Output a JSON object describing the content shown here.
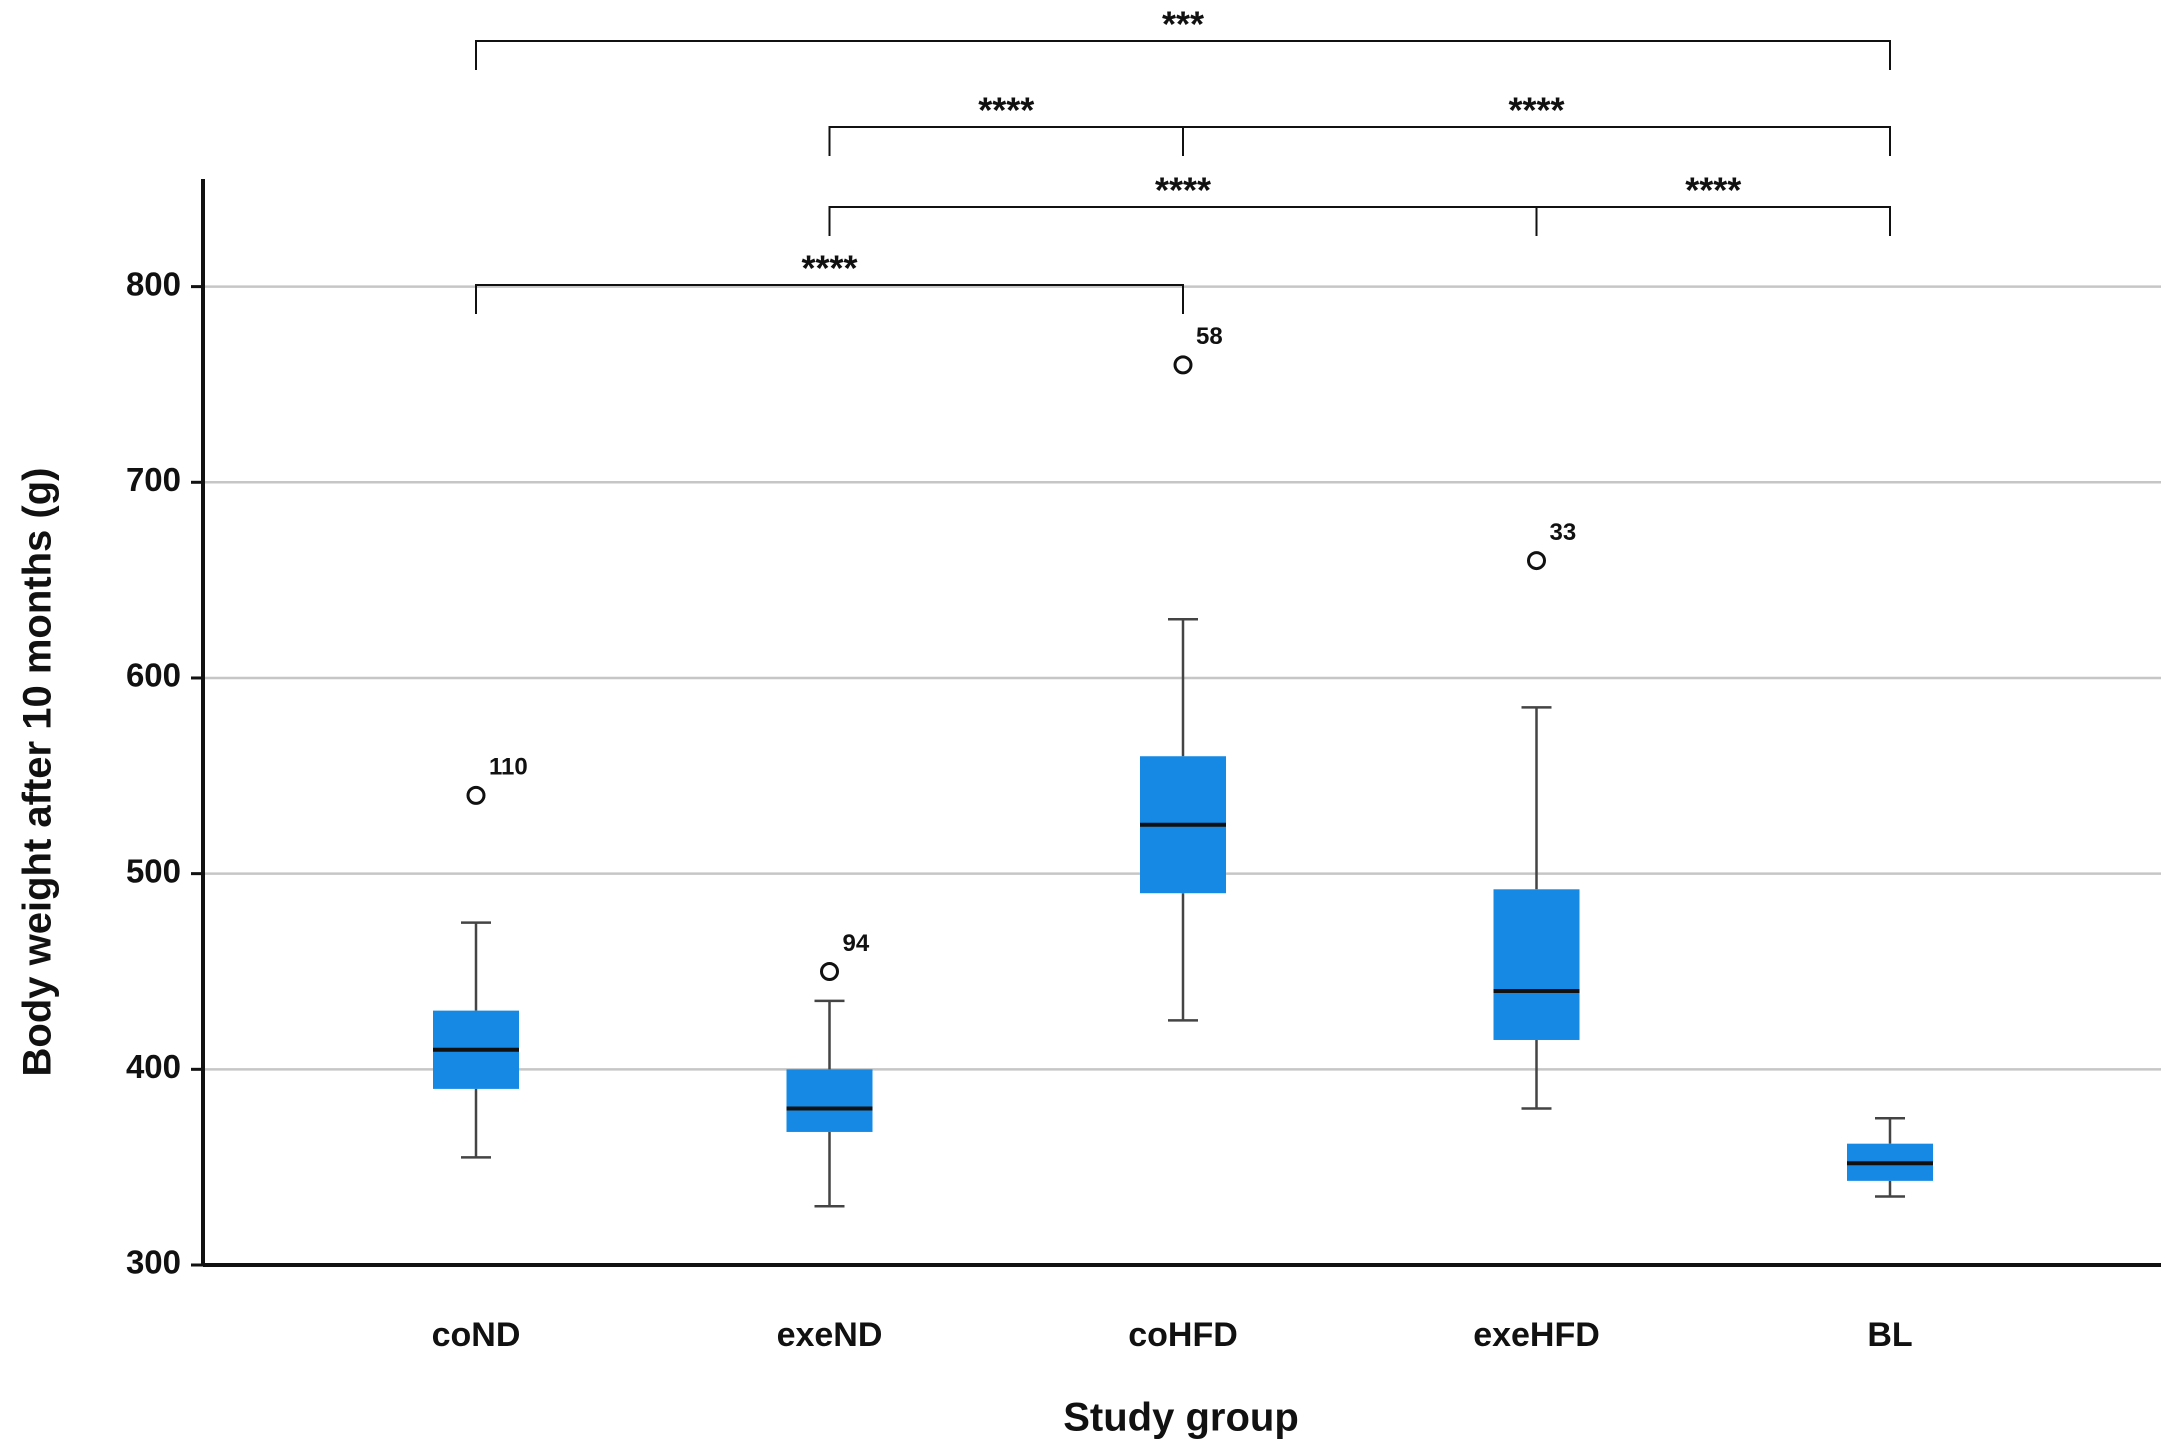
{
  "chart_data": {
    "type": "box",
    "x_label": "Study group",
    "y_label": "Body weight after 10 months (g)",
    "categories": [
      "coND",
      "exeND",
      "coHFD",
      "exeHFD",
      "BL"
    ],
    "color": "#1589e3",
    "ylim": [
      300,
      855
    ],
    "yticks": [
      300,
      400,
      500,
      600,
      700,
      800
    ],
    "grid": true,
    "boxes": [
      {
        "min": 355,
        "q1": 390,
        "median": 410,
        "q3": 430,
        "max": 475,
        "outliers": [
          {
            "value": 540,
            "label": "110"
          }
        ]
      },
      {
        "min": 330,
        "q1": 368,
        "median": 380,
        "q3": 400,
        "max": 435,
        "outliers": [
          {
            "value": 450,
            "label": "94"
          }
        ]
      },
      {
        "min": 425,
        "q1": 490,
        "median": 525,
        "q3": 560,
        "max": 630,
        "outliers": [
          {
            "value": 760,
            "label": "58"
          }
        ]
      },
      {
        "min": 380,
        "q1": 415,
        "median": 440,
        "q3": 492,
        "max": 585,
        "outliers": [
          {
            "value": 660,
            "label": "33"
          }
        ]
      },
      {
        "min": 335,
        "q1": 343,
        "median": 352,
        "q3": 362,
        "max": 375,
        "outliers": []
      }
    ],
    "comparisons": [
      {
        "groups": [
          "coND",
          "BL"
        ],
        "label": "***"
      },
      {
        "groups": [
          "exeND",
          "coHFD"
        ],
        "label": "****"
      },
      {
        "groups": [
          "coHFD",
          "BL"
        ],
        "label": "****"
      },
      {
        "groups": [
          "exeND",
          "exeHFD"
        ],
        "label": "****"
      },
      {
        "groups": [
          "exeHFD",
          "BL"
        ],
        "label": "****"
      },
      {
        "groups": [
          "coND",
          "coHFD"
        ],
        "label": "****"
      }
    ]
  }
}
